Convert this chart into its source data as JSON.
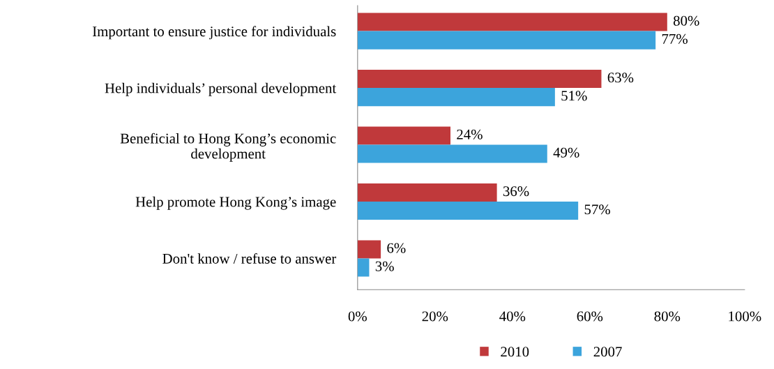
{
  "chart_data": {
    "type": "bar",
    "orientation": "horizontal",
    "categories": [
      "Important to ensure justice for individuals",
      "Help individuals’ personal development",
      "Beneficial to Hong Kong’s economic\ndevelopment",
      "Help promote Hong Kong’s image",
      "Don't know / refuse to answer"
    ],
    "series": [
      {
        "name": "2010",
        "color": "#c0393b",
        "values": [
          80,
          63,
          24,
          36,
          6
        ],
        "value_labels": [
          "80%",
          "63%",
          "24%",
          "36%",
          "6%"
        ]
      },
      {
        "name": "2007",
        "color": "#3ca4dc",
        "values": [
          77,
          51,
          49,
          57,
          3
        ],
        "value_labels": [
          "77%",
          "51%",
          "49%",
          "57%",
          "3%"
        ]
      }
    ],
    "xlim": [
      0,
      100
    ],
    "xticks": [
      {
        "value": 0,
        "label": "0%"
      },
      {
        "value": 20,
        "label": "20%"
      },
      {
        "value": 40,
        "label": "40%"
      },
      {
        "value": 60,
        "label": "60%"
      },
      {
        "value": 80,
        "label": "80%"
      },
      {
        "value": 100,
        "label": "100%"
      }
    ],
    "grid": false,
    "legend": "bottom"
  }
}
